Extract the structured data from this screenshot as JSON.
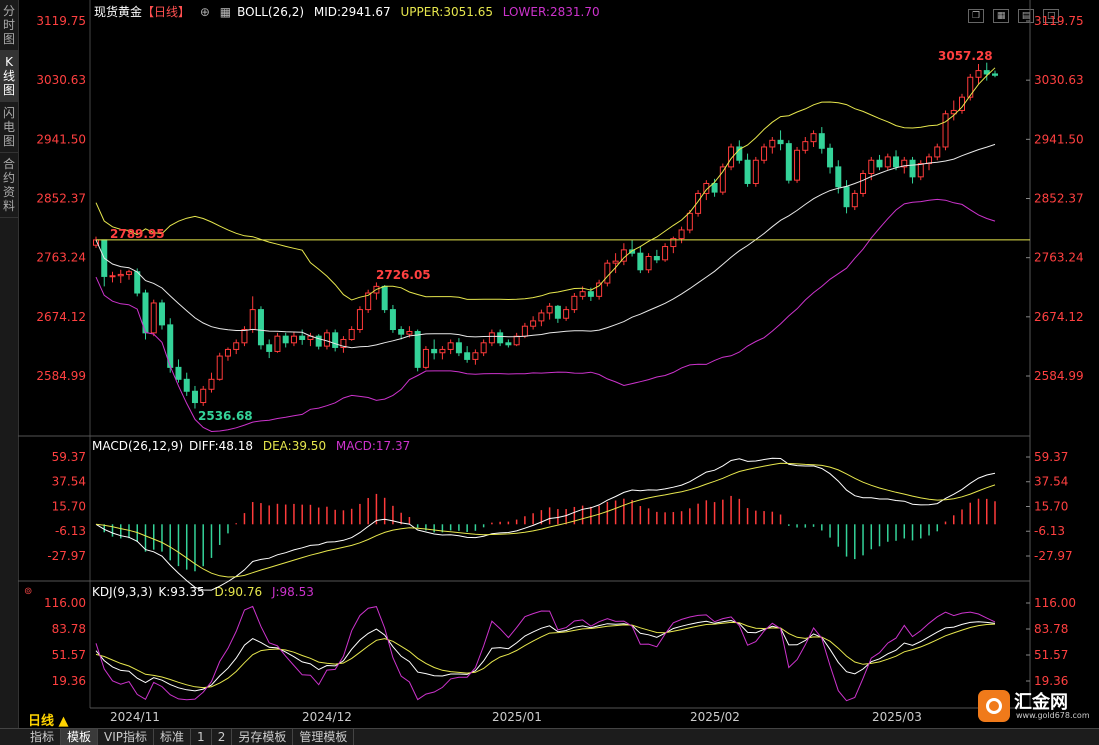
{
  "sidebar": {
    "tabs": [
      {
        "label": "分时图",
        "active": false
      },
      {
        "label": "K线图",
        "active": true
      },
      {
        "label": "闪电图",
        "active": false
      },
      {
        "label": "合约资料",
        "active": false
      }
    ]
  },
  "main": {
    "title": "现货黄金",
    "period_tag": "【日线】",
    "boll_label": "BOLL(26,2)",
    "mid": "MID:2941.67",
    "upper": "UPPER:3051.65",
    "lower": "LOWER:2831.70",
    "y_ticks": [
      "3119.75",
      "3030.63",
      "2941.50",
      "2852.37",
      "2763.24",
      "2674.12",
      "2584.99"
    ],
    "annotations": {
      "high": "3057.28",
      "low": "2536.68",
      "a1": "2789.95",
      "a2": "2726.05"
    },
    "hline": 2789.95
  },
  "macd": {
    "label": "MACD(26,12,9)",
    "diff": "DIFF:48.18",
    "dea": "DEA:39.50",
    "macd": "MACD:17.37",
    "y_ticks": [
      "59.37",
      "37.54",
      "15.70",
      "-6.13",
      "-27.97"
    ]
  },
  "kdj": {
    "label": "KDJ(9,3,3)",
    "k": "K:93.35",
    "d": "D:90.76",
    "j": "J:98.53",
    "y_ticks": [
      "116.00",
      "83.78",
      "51.57",
      "19.36"
    ]
  },
  "x_labels": [
    "2024/11",
    "2024/12",
    "2025/01",
    "2025/02",
    "2025/03"
  ],
  "period_button": "日线 ▲",
  "bottom_tabs": [
    {
      "label": "指标",
      "active": false
    },
    {
      "label": "模板",
      "active": true
    },
    {
      "label": "VIP指标",
      "active": false
    },
    {
      "label": "标准",
      "active": false
    },
    {
      "label": "1",
      "active": false
    },
    {
      "label": "2",
      "active": false
    },
    {
      "label": "另存模板",
      "active": false
    },
    {
      "label": "管理模板",
      "active": false
    }
  ],
  "logo": {
    "name": "汇金网",
    "url": "www.gold678.com"
  },
  "colors": {
    "up": "#ff3b3b",
    "down": "#34d399",
    "mid": "#e8e8e8",
    "upper": "#e6e64d",
    "lower": "#cc33cc",
    "diff": "#ffffff",
    "dea": "#e6e64d",
    "macd": "#cc33cc"
  },
  "chart_data": {
    "type": "candlestick",
    "note_units": "price",
    "candles": [
      [
        2782,
        2795,
        2778,
        2790
      ],
      [
        2790,
        2789,
        2720,
        2735
      ],
      [
        2735,
        2742,
        2726,
        2736
      ],
      [
        2736,
        2745,
        2725,
        2738
      ],
      [
        2738,
        2745,
        2730,
        2742
      ],
      [
        2742,
        2747,
        2705,
        2710
      ],
      [
        2710,
        2715,
        2640,
        2650
      ],
      [
        2650,
        2700,
        2645,
        2695
      ],
      [
        2695,
        2700,
        2655,
        2662
      ],
      [
        2662,
        2672,
        2590,
        2598
      ],
      [
        2598,
        2610,
        2575,
        2580
      ],
      [
        2580,
        2590,
        2555,
        2562
      ],
      [
        2562,
        2570,
        2536,
        2545
      ],
      [
        2545,
        2570,
        2540,
        2565
      ],
      [
        2565,
        2590,
        2560,
        2580
      ],
      [
        2580,
        2620,
        2578,
        2615
      ],
      [
        2615,
        2628,
        2608,
        2625
      ],
      [
        2625,
        2640,
        2618,
        2635
      ],
      [
        2635,
        2660,
        2630,
        2655
      ],
      [
        2655,
        2705,
        2650,
        2685
      ],
      [
        2685,
        2690,
        2625,
        2632
      ],
      [
        2632,
        2640,
        2612,
        2622
      ],
      [
        2622,
        2650,
        2620,
        2645
      ],
      [
        2645,
        2650,
        2628,
        2635
      ],
      [
        2635,
        2652,
        2630,
        2645
      ],
      [
        2645,
        2655,
        2632,
        2640
      ],
      [
        2640,
        2650,
        2630,
        2645
      ],
      [
        2645,
        2648,
        2625,
        2630
      ],
      [
        2630,
        2655,
        2625,
        2650
      ],
      [
        2650,
        2655,
        2622,
        2628
      ],
      [
        2628,
        2645,
        2620,
        2640
      ],
      [
        2640,
        2660,
        2638,
        2655
      ],
      [
        2655,
        2690,
        2650,
        2685
      ],
      [
        2685,
        2715,
        2680,
        2710
      ],
      [
        2710,
        2726,
        2700,
        2720
      ],
      [
        2720,
        2722,
        2680,
        2685
      ],
      [
        2685,
        2692,
        2650,
        2655
      ],
      [
        2655,
        2660,
        2640,
        2648
      ],
      [
        2648,
        2660,
        2643,
        2652
      ],
      [
        2652,
        2655,
        2592,
        2598
      ],
      [
        2598,
        2630,
        2595,
        2625
      ],
      [
        2625,
        2640,
        2610,
        2620
      ],
      [
        2620,
        2630,
        2610,
        2625
      ],
      [
        2625,
        2640,
        2618,
        2635
      ],
      [
        2635,
        2642,
        2615,
        2620
      ],
      [
        2620,
        2630,
        2605,
        2610
      ],
      [
        2610,
        2625,
        2602,
        2620
      ],
      [
        2620,
        2640,
        2615,
        2635
      ],
      [
        2635,
        2655,
        2630,
        2650
      ],
      [
        2650,
        2655,
        2630,
        2635
      ],
      [
        2635,
        2640,
        2628,
        2632
      ],
      [
        2632,
        2650,
        2630,
        2645
      ],
      [
        2645,
        2665,
        2642,
        2660
      ],
      [
        2660,
        2675,
        2655,
        2668
      ],
      [
        2668,
        2685,
        2660,
        2680
      ],
      [
        2680,
        2695,
        2670,
        2690
      ],
      [
        2690,
        2692,
        2665,
        2672
      ],
      [
        2672,
        2690,
        2668,
        2685
      ],
      [
        2685,
        2710,
        2680,
        2705
      ],
      [
        2705,
        2720,
        2700,
        2712
      ],
      [
        2712,
        2718,
        2698,
        2705
      ],
      [
        2705,
        2730,
        2700,
        2725
      ],
      [
        2725,
        2760,
        2720,
        2755
      ],
      [
        2755,
        2770,
        2740,
        2758
      ],
      [
        2758,
        2785,
        2752,
        2775
      ],
      [
        2775,
        2790,
        2765,
        2770
      ],
      [
        2770,
        2780,
        2740,
        2745
      ],
      [
        2745,
        2770,
        2740,
        2765
      ],
      [
        2765,
        2775,
        2755,
        2760
      ],
      [
        2760,
        2785,
        2757,
        2780
      ],
      [
        2780,
        2795,
        2770,
        2792
      ],
      [
        2792,
        2810,
        2785,
        2805
      ],
      [
        2805,
        2835,
        2800,
        2830
      ],
      [
        2830,
        2865,
        2825,
        2860
      ],
      [
        2860,
        2880,
        2850,
        2875
      ],
      [
        2875,
        2882,
        2855,
        2862
      ],
      [
        2862,
        2905,
        2858,
        2900
      ],
      [
        2900,
        2935,
        2895,
        2930
      ],
      [
        2930,
        2940,
        2905,
        2910
      ],
      [
        2910,
        2920,
        2870,
        2875
      ],
      [
        2875,
        2915,
        2870,
        2910
      ],
      [
        2910,
        2935,
        2905,
        2930
      ],
      [
        2930,
        2945,
        2920,
        2940
      ],
      [
        2940,
        2955,
        2925,
        2935
      ],
      [
        2935,
        2940,
        2875,
        2880
      ],
      [
        2880,
        2930,
        2876,
        2925
      ],
      [
        2925,
        2945,
        2920,
        2938
      ],
      [
        2938,
        2955,
        2930,
        2950
      ],
      [
        2950,
        2960,
        2920,
        2928
      ],
      [
        2928,
        2935,
        2890,
        2900
      ],
      [
        2900,
        2910,
        2860,
        2870
      ],
      [
        2870,
        2880,
        2830,
        2840
      ],
      [
        2840,
        2865,
        2835,
        2860
      ],
      [
        2860,
        2895,
        2855,
        2890
      ],
      [
        2890,
        2915,
        2880,
        2910
      ],
      [
        2910,
        2918,
        2895,
        2900
      ],
      [
        2900,
        2920,
        2895,
        2915
      ],
      [
        2915,
        2925,
        2895,
        2900
      ],
      [
        2900,
        2915,
        2890,
        2910
      ],
      [
        2910,
        2915,
        2875,
        2885
      ],
      [
        2885,
        2910,
        2880,
        2905
      ],
      [
        2905,
        2920,
        2895,
        2915
      ],
      [
        2915,
        2935,
        2910,
        2930
      ],
      [
        2930,
        2985,
        2925,
        2980
      ],
      [
        2980,
        3000,
        2970,
        2985
      ],
      [
        2985,
        3010,
        2980,
        3005
      ],
      [
        3005,
        3040,
        3000,
        3035
      ],
      [
        3035,
        3055,
        3025,
        3045
      ],
      [
        3045,
        3057,
        3030,
        3040
      ],
      [
        3040,
        3045,
        3035,
        3038
      ]
    ]
  }
}
